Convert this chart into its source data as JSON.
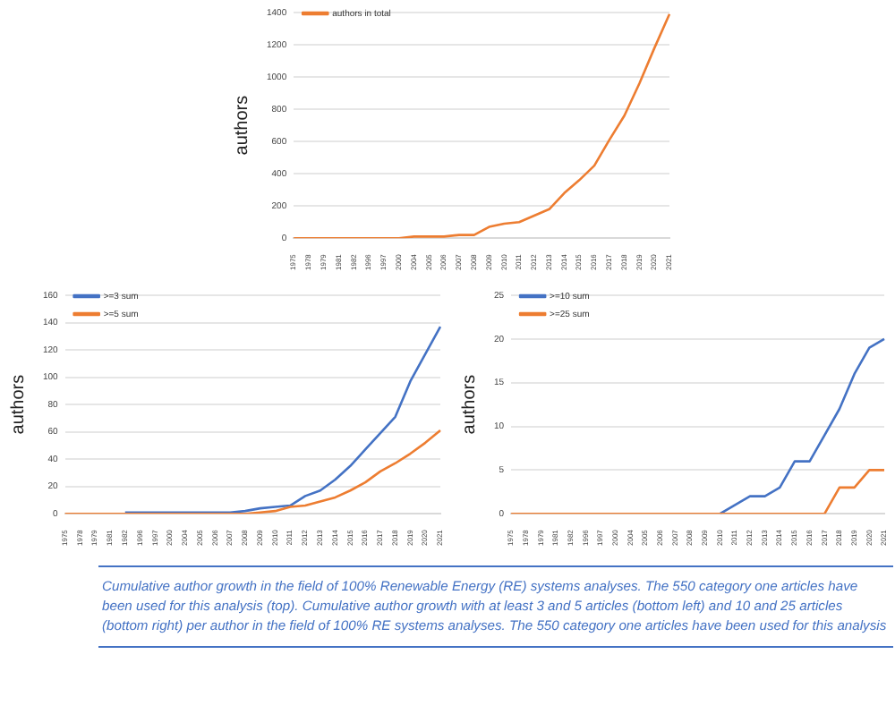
{
  "chart_data": [
    {
      "type": "line",
      "ylabel": "authors",
      "categories": [
        "1975",
        "1978",
        "1979",
        "1981",
        "1982",
        "1996",
        "1997",
        "2000",
        "2004",
        "2005",
        "2006",
        "2007",
        "2008",
        "2009",
        "2010",
        "2011",
        "2012",
        "2013",
        "2014",
        "2015",
        "2016",
        "2017",
        "2018",
        "2019",
        "2020",
        "2021"
      ],
      "series": [
        {
          "name": "authors in total",
          "color": "#ed7d31",
          "values": [
            0,
            0,
            0,
            0,
            0,
            0,
            0,
            0,
            10,
            10,
            10,
            20,
            20,
            70,
            90,
            100,
            140,
            180,
            280,
            360,
            450,
            610,
            760,
            960,
            1180,
            1390
          ]
        }
      ],
      "ylim": [
        0,
        1400
      ],
      "yticks": [
        0,
        200,
        400,
        600,
        800,
        1000,
        1200,
        1400
      ],
      "grid": "y",
      "legend": "top left"
    },
    {
      "type": "line",
      "ylabel": "authors",
      "categories": [
        "1975",
        "1978",
        "1979",
        "1981",
        "1982",
        "1996",
        "1997",
        "2000",
        "2004",
        "2005",
        "2006",
        "2007",
        "2008",
        "2009",
        "2010",
        "2011",
        "2012",
        "2013",
        "2014",
        "2015",
        "2016",
        "2017",
        "2018",
        "2019",
        "2020",
        "2021"
      ],
      "series": [
        {
          "name": ">=3 sum",
          "color": "#4472c4",
          "values": [
            null,
            null,
            null,
            null,
            1,
            1,
            1,
            1,
            1,
            1,
            1,
            1,
            2,
            4,
            5,
            6,
            13,
            17,
            25,
            35,
            47,
            59,
            71,
            97,
            117,
            137
          ]
        },
        {
          "name": ">=5 sum",
          "color": "#ed7d31",
          "values": [
            0,
            0,
            0,
            0,
            0,
            0,
            0,
            0,
            0,
            0,
            0,
            0,
            0,
            1,
            2,
            5,
            6,
            9,
            12,
            17,
            23,
            31,
            37,
            44,
            52,
            61
          ]
        }
      ],
      "ylim": [
        0,
        160
      ],
      "yticks": [
        0,
        20,
        40,
        60,
        80,
        100,
        120,
        140,
        160
      ],
      "grid": "y",
      "legend": "top left"
    },
    {
      "type": "line",
      "ylabel": "authors",
      "categories": [
        "1975",
        "1978",
        "1979",
        "1981",
        "1982",
        "1996",
        "1997",
        "2000",
        "2004",
        "2005",
        "2006",
        "2007",
        "2008",
        "2009",
        "2010",
        "2011",
        "2012",
        "2013",
        "2014",
        "2015",
        "2016",
        "2017",
        "2018",
        "2019",
        "2020",
        "2021"
      ],
      "series": [
        {
          "name": ">=10 sum",
          "color": "#4472c4",
          "values": [
            null,
            null,
            null,
            null,
            null,
            null,
            null,
            null,
            null,
            null,
            null,
            null,
            null,
            null,
            0,
            1,
            2,
            2,
            3,
            6,
            6,
            9,
            12,
            16,
            19,
            20
          ]
        },
        {
          "name": ">=25 sum",
          "color": "#ed7d31",
          "values": [
            0,
            0,
            0,
            0,
            0,
            0,
            0,
            0,
            0,
            0,
            0,
            0,
            0,
            0,
            0,
            0,
            0,
            0,
            0,
            0,
            0,
            0,
            3,
            3,
            5,
            5
          ]
        }
      ],
      "ylim": [
        0,
        25
      ],
      "yticks": [
        0,
        5,
        10,
        15,
        20,
        25
      ],
      "grid": "y",
      "legend": "top left",
      "annotations": [
        "Cumulative author growth in the field of 100% Renewable Energy (RE) systems analyses. The 550 category one articles have been used for this analysis (top). Cumulative author growth with at least 3 and 5 articles (bottom left) and 10 and 25 articles (bottom right) per author in the field of 100% RE systems analyses. The 550 category one articles have been used for this analysis"
      ]
    }
  ]
}
